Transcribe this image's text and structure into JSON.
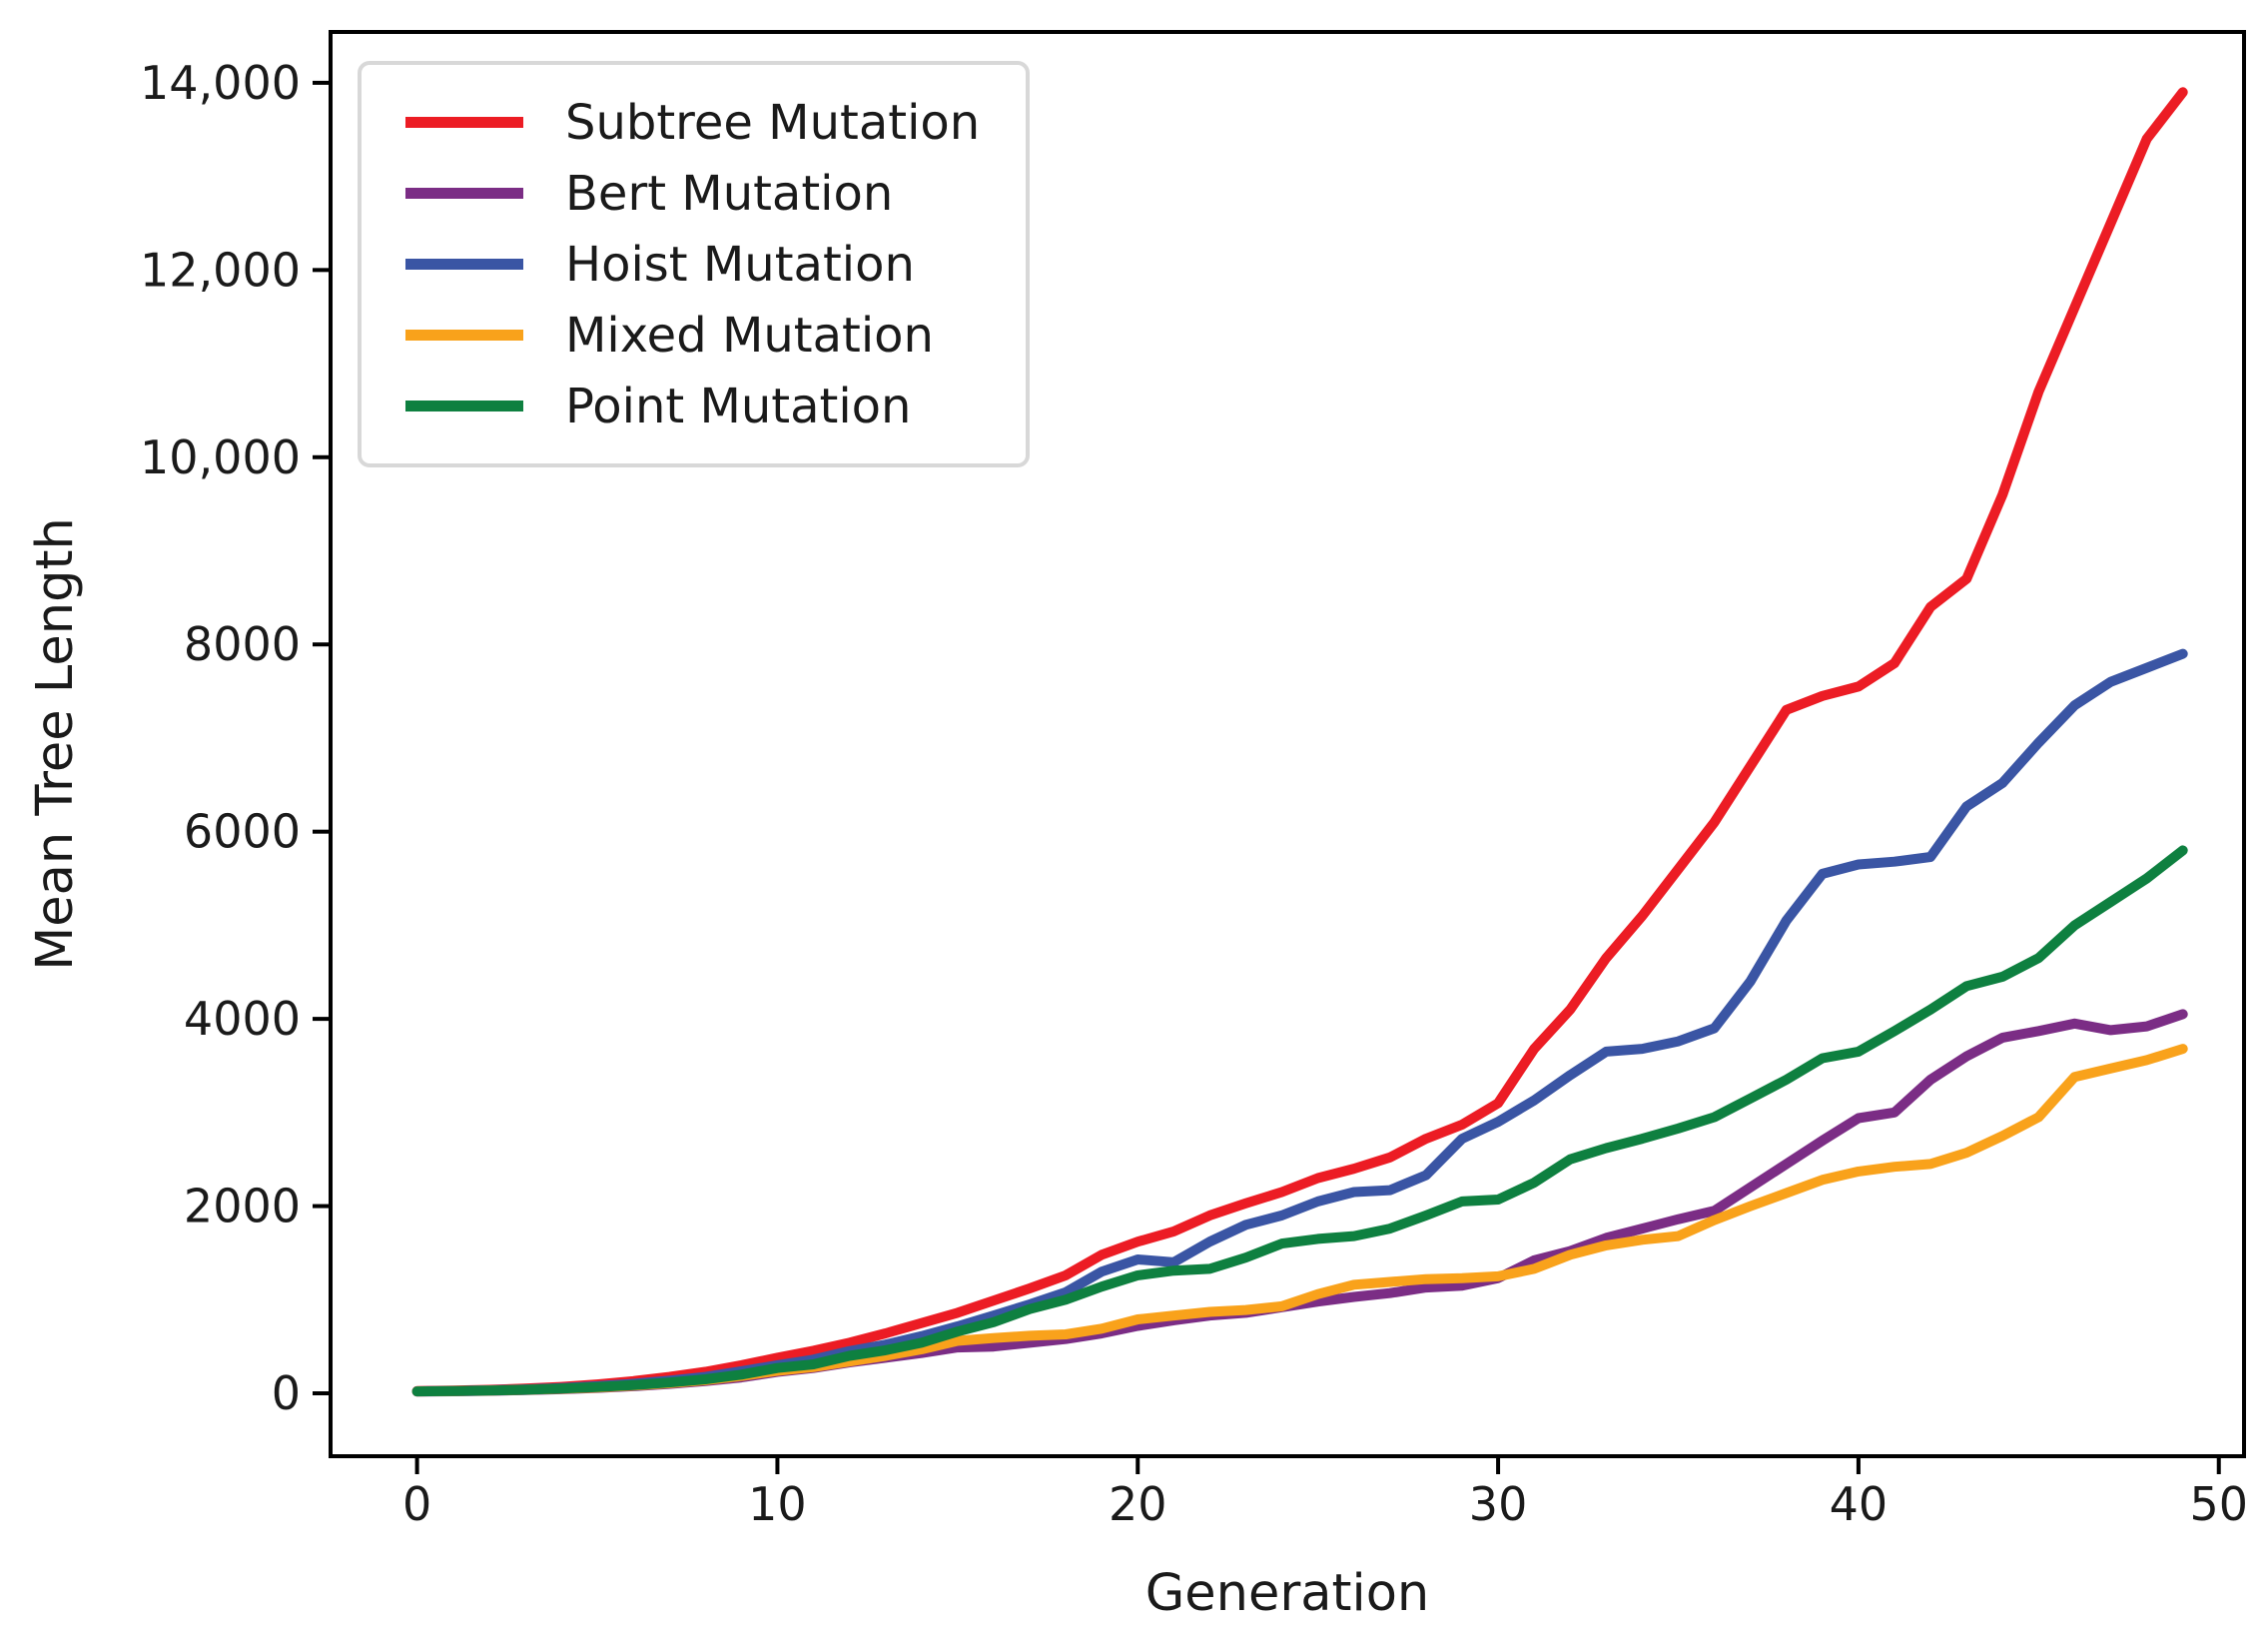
{
  "figure": {
    "background": "#ffffff",
    "text_color": "#1a1a1a",
    "axis_color": "#000000",
    "legend_border_color": "#d8d8d8"
  },
  "chart_data": {
    "type": "line",
    "title": "",
    "xlabel": "Generation",
    "ylabel": "Mean Tree Length",
    "grid": false,
    "legend_position": "upper left",
    "xlim": [
      -2.4,
      50.7
    ],
    "ylim": [
      -672,
      14543
    ],
    "x_ticks": [
      0,
      10,
      20,
      30,
      40,
      50
    ],
    "x_tick_labels": [
      "0",
      "10",
      "20",
      "30",
      "40",
      "50"
    ],
    "y_ticks": [
      0,
      2000,
      4000,
      6000,
      8000,
      10000,
      12000,
      14000
    ],
    "y_tick_labels": [
      "0",
      "2000",
      "4000",
      "6000",
      "8000",
      "10,000",
      "12,000",
      "14,000"
    ],
    "x": [
      0,
      1,
      2,
      3,
      4,
      5,
      6,
      7,
      8,
      9,
      10,
      11,
      12,
      13,
      14,
      15,
      16,
      17,
      18,
      19,
      20,
      21,
      22,
      23,
      24,
      25,
      26,
      27,
      28,
      29,
      30,
      31,
      32,
      33,
      34,
      35,
      36,
      37,
      38,
      39,
      40,
      41,
      42,
      43,
      44,
      45,
      46,
      47,
      48,
      49
    ],
    "series": [
      {
        "name": "Subtree Mutation",
        "color": "#ec1c24",
        "values": [
          25,
          30,
          38,
          50,
          68,
          95,
          130,
          175,
          230,
          300,
          380,
          455,
          540,
          640,
          750,
          860,
          990,
          1120,
          1260,
          1480,
          1620,
          1730,
          1900,
          2030,
          2150,
          2300,
          2400,
          2520,
          2720,
          2870,
          3100,
          3680,
          4100,
          4650,
          5100,
          5600,
          6100,
          6700,
          7300,
          7450,
          7550,
          7800,
          8400,
          8700,
          9600,
          10700,
          11600,
          12500,
          13400,
          13900
        ]
      },
      {
        "name": "Bert Mutation",
        "color": "#7b2d85",
        "values": [
          18,
          22,
          27,
          34,
          44,
          58,
          76,
          100,
          130,
          170,
          230,
          270,
          330,
          380,
          430,
          490,
          500,
          540,
          580,
          640,
          720,
          780,
          830,
          860,
          920,
          980,
          1030,
          1070,
          1130,
          1150,
          1230,
          1420,
          1520,
          1660,
          1760,
          1860,
          1950,
          2200,
          2450,
          2700,
          2940,
          3000,
          3350,
          3600,
          3800,
          3870,
          3950,
          3880,
          3920,
          4050
        ]
      },
      {
        "name": "Hoist Mutation",
        "color": "#3a55a4",
        "values": [
          22,
          26,
          32,
          42,
          56,
          76,
          102,
          135,
          175,
          235,
          300,
          360,
          450,
          520,
          610,
          715,
          830,
          950,
          1080,
          1300,
          1430,
          1400,
          1620,
          1800,
          1900,
          2050,
          2150,
          2170,
          2330,
          2720,
          2900,
          3130,
          3400,
          3650,
          3680,
          3760,
          3900,
          4400,
          5050,
          5550,
          5650,
          5680,
          5730,
          6270,
          6520,
          6950,
          7350,
          7600,
          7750,
          7900
        ]
      },
      {
        "name": "Mixed Mutation",
        "color": "#f9a21b",
        "values": [
          20,
          24,
          30,
          38,
          48,
          62,
          82,
          108,
          140,
          185,
          240,
          280,
          340,
          400,
          470,
          560,
          590,
          615,
          630,
          690,
          790,
          830,
          870,
          890,
          930,
          1060,
          1160,
          1190,
          1220,
          1230,
          1250,
          1330,
          1480,
          1580,
          1640,
          1680,
          1850,
          2000,
          2140,
          2280,
          2370,
          2420,
          2450,
          2570,
          2750,
          2950,
          3380,
          3470,
          3560,
          3680
        ]
      },
      {
        "name": "Point Mutation",
        "color": "#0e8040",
        "values": [
          20,
          24,
          30,
          38,
          50,
          66,
          88,
          115,
          150,
          200,
          270,
          310,
          400,
          460,
          540,
          660,
          760,
          900,
          1000,
          1140,
          1260,
          1310,
          1330,
          1450,
          1600,
          1650,
          1680,
          1760,
          1900,
          2050,
          2070,
          2250,
          2500,
          2620,
          2720,
          2830,
          2950,
          3150,
          3350,
          3580,
          3650,
          3870,
          4100,
          4350,
          4450,
          4650,
          5000,
          5250,
          5500,
          5800
        ]
      }
    ]
  }
}
